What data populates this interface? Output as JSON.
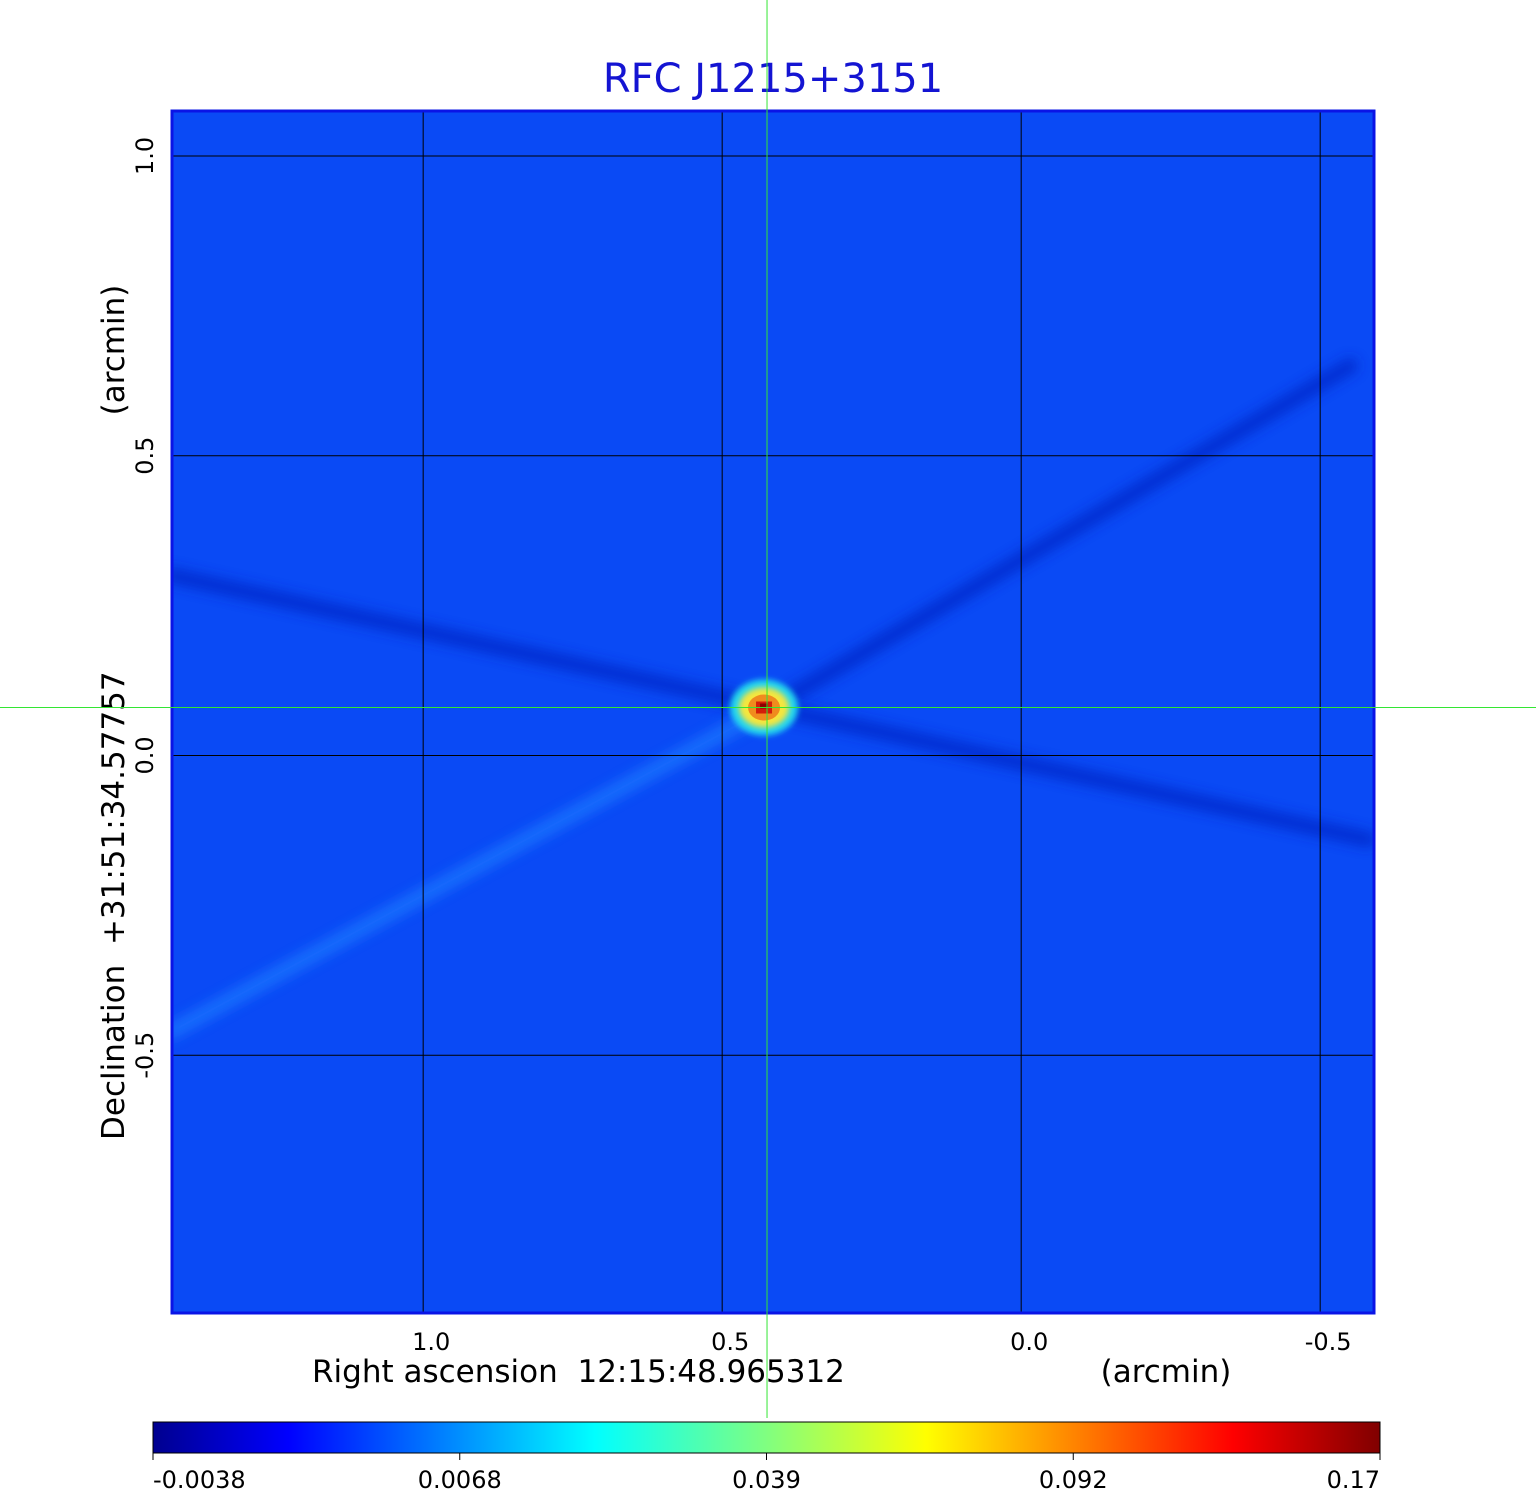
{
  "chart_data": {
    "type": "heatmap",
    "title": "RFC J1215+3151",
    "xlabel": "Right ascension  12:15:48.965312",
    "xunit": "(arcmin)",
    "ylabel": "Declination  +31:51:34.57757",
    "yunit": "(arcmin)",
    "x_ticks": [
      1.0,
      0.5,
      0.0,
      -0.5
    ],
    "x_tick_labels": [
      "1.0",
      "0.5",
      "0.0",
      "-0.5"
    ],
    "y_ticks": [
      1.0,
      0.5,
      0.0,
      -0.5
    ],
    "y_tick_labels": [
      "1.0",
      "0.5",
      "0.0",
      "-0.5"
    ],
    "xlim": [
      1.42,
      -0.59
    ],
    "ylim": [
      -0.93,
      1.075
    ],
    "grid": true,
    "colormap": "jet",
    "colorbar": {
      "position": "bottom",
      "tick_labels": [
        "-0.0038",
        "0.0068",
        "0.039",
        "0.092",
        "0.17"
      ]
    },
    "source_peak": {
      "x": 0.43,
      "y": 0.08,
      "value": 0.17
    },
    "crosshair": {
      "x": 0.425,
      "y": 0.08
    },
    "background_level": 0.003,
    "sidelobe_streaks": [
      {
        "from": [
          1.42,
          -0.46
        ],
        "to": [
          0.42,
          0.08
        ],
        "sign": "positive"
      },
      {
        "from": [
          0.42,
          0.08
        ],
        "to": [
          -0.55,
          0.65
        ],
        "sign": "negative"
      },
      {
        "from": [
          1.42,
          0.3
        ],
        "to": [
          0.42,
          0.08
        ],
        "sign": "negative"
      },
      {
        "from": [
          0.42,
          0.08
        ],
        "to": [
          -0.58,
          -0.14
        ],
        "sign": "negative"
      }
    ]
  },
  "colors": {
    "title": "#1414d2",
    "grid": "#000000",
    "frame": "#0a14e6",
    "crosshair": "#33e633",
    "background": "#0a4af5"
  }
}
